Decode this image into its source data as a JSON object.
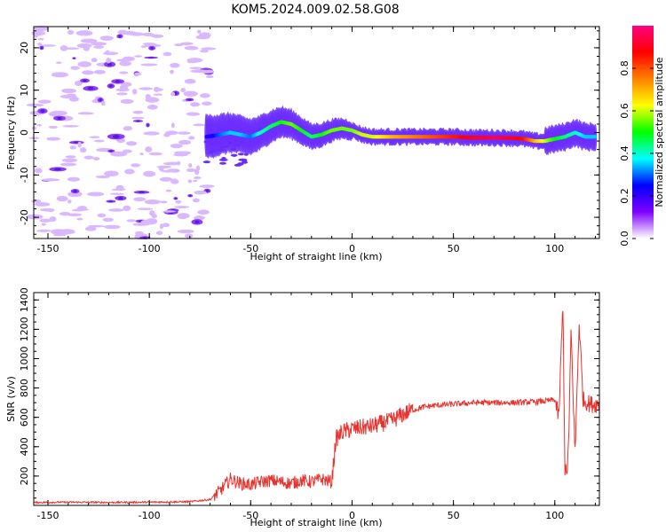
{
  "chart_data": [
    {
      "type": "heatmap",
      "title": "KOM5.2024.009.02.58.G08",
      "xlabel": "Height of straight line (km)",
      "ylabel": "Frequency (Hz)",
      "xlim": [
        -157,
        122
      ],
      "ylim": [
        -25,
        25
      ],
      "xticks": [
        -150,
        -100,
        -50,
        0,
        50,
        100
      ],
      "yticks": [
        -20,
        -10,
        0,
        10,
        20
      ],
      "colorbar": {
        "label": "Normalized spectral amplitude",
        "range": [
          0,
          1
        ],
        "ticks": [
          "0.0",
          "0.2",
          "0.4",
          "0.6",
          "0.8"
        ],
        "colormap": [
          "#ffffff",
          "#7f00ff",
          "#0000ff",
          "#00ffff",
          "#00ff00",
          "#ffff00",
          "#ff8000",
          "#ff0000",
          "#ff0080"
        ]
      },
      "noise_region_x": [
        -157,
        -70
      ],
      "ridge": {
        "x": [
          -72,
          -65,
          -60,
          -55,
          -50,
          -45,
          -40,
          -35,
          -30,
          -25,
          -20,
          -15,
          -10,
          -5,
          0,
          5,
          10,
          15,
          20,
          30,
          40,
          50,
          60,
          70,
          80,
          85,
          90,
          95,
          100,
          105,
          110,
          115,
          120
        ],
        "freq": [
          -1,
          -0.5,
          0,
          -0.5,
          -1,
          0,
          1.5,
          2.5,
          2,
          0.5,
          -1,
          -0.5,
          0.5,
          1,
          0.5,
          -0.5,
          -1,
          -1,
          -1,
          -1,
          -1,
          -1,
          -1.2,
          -1.2,
          -1.3,
          -1.5,
          -2,
          -2,
          -1.5,
          -1,
          0,
          -1,
          -1
        ],
        "amplitude": [
          0.2,
          0.3,
          0.35,
          0.35,
          0.3,
          0.4,
          0.45,
          0.5,
          0.55,
          0.5,
          0.45,
          0.5,
          0.55,
          0.55,
          0.55,
          0.6,
          0.6,
          0.65,
          0.7,
          0.75,
          0.8,
          0.85,
          0.9,
          0.95,
          0.9,
          0.85,
          0.7,
          0.6,
          0.5,
          0.45,
          0.4,
          0.35,
          0.35
        ]
      }
    },
    {
      "type": "line",
      "xlabel": "Height of straight line (km)",
      "ylabel": "SNR (v/v)",
      "xlim": [
        -157,
        122
      ],
      "ylim": [
        0,
        1450
      ],
      "xticks": [
        -150,
        -100,
        -50,
        0,
        50,
        100
      ],
      "yticks": [
        200,
        400,
        600,
        800,
        1000,
        1200,
        1400
      ],
      "color": "#e8332f",
      "x": [
        -157,
        -140,
        -120,
        -100,
        -80,
        -70,
        -65,
        -60,
        -55,
        -50,
        -45,
        -40,
        -35,
        -30,
        -25,
        -20,
        -15,
        -10,
        -8,
        -5,
        0,
        5,
        10,
        15,
        20,
        25,
        30,
        35,
        40,
        50,
        60,
        70,
        80,
        90,
        95,
        100,
        102,
        104,
        105,
        106,
        107,
        108,
        110,
        112,
        114,
        116,
        118,
        122
      ],
      "y": [
        20,
        22,
        20,
        22,
        25,
        40,
        100,
        180,
        150,
        140,
        160,
        170,
        160,
        150,
        170,
        160,
        180,
        160,
        450,
        500,
        520,
        530,
        540,
        560,
        580,
        620,
        650,
        670,
        680,
        690,
        700,
        700,
        700,
        705,
        710,
        720,
        600,
        1380,
        250,
        200,
        500,
        1200,
        350,
        1240,
        720,
        700,
        690,
        690
      ]
    }
  ]
}
